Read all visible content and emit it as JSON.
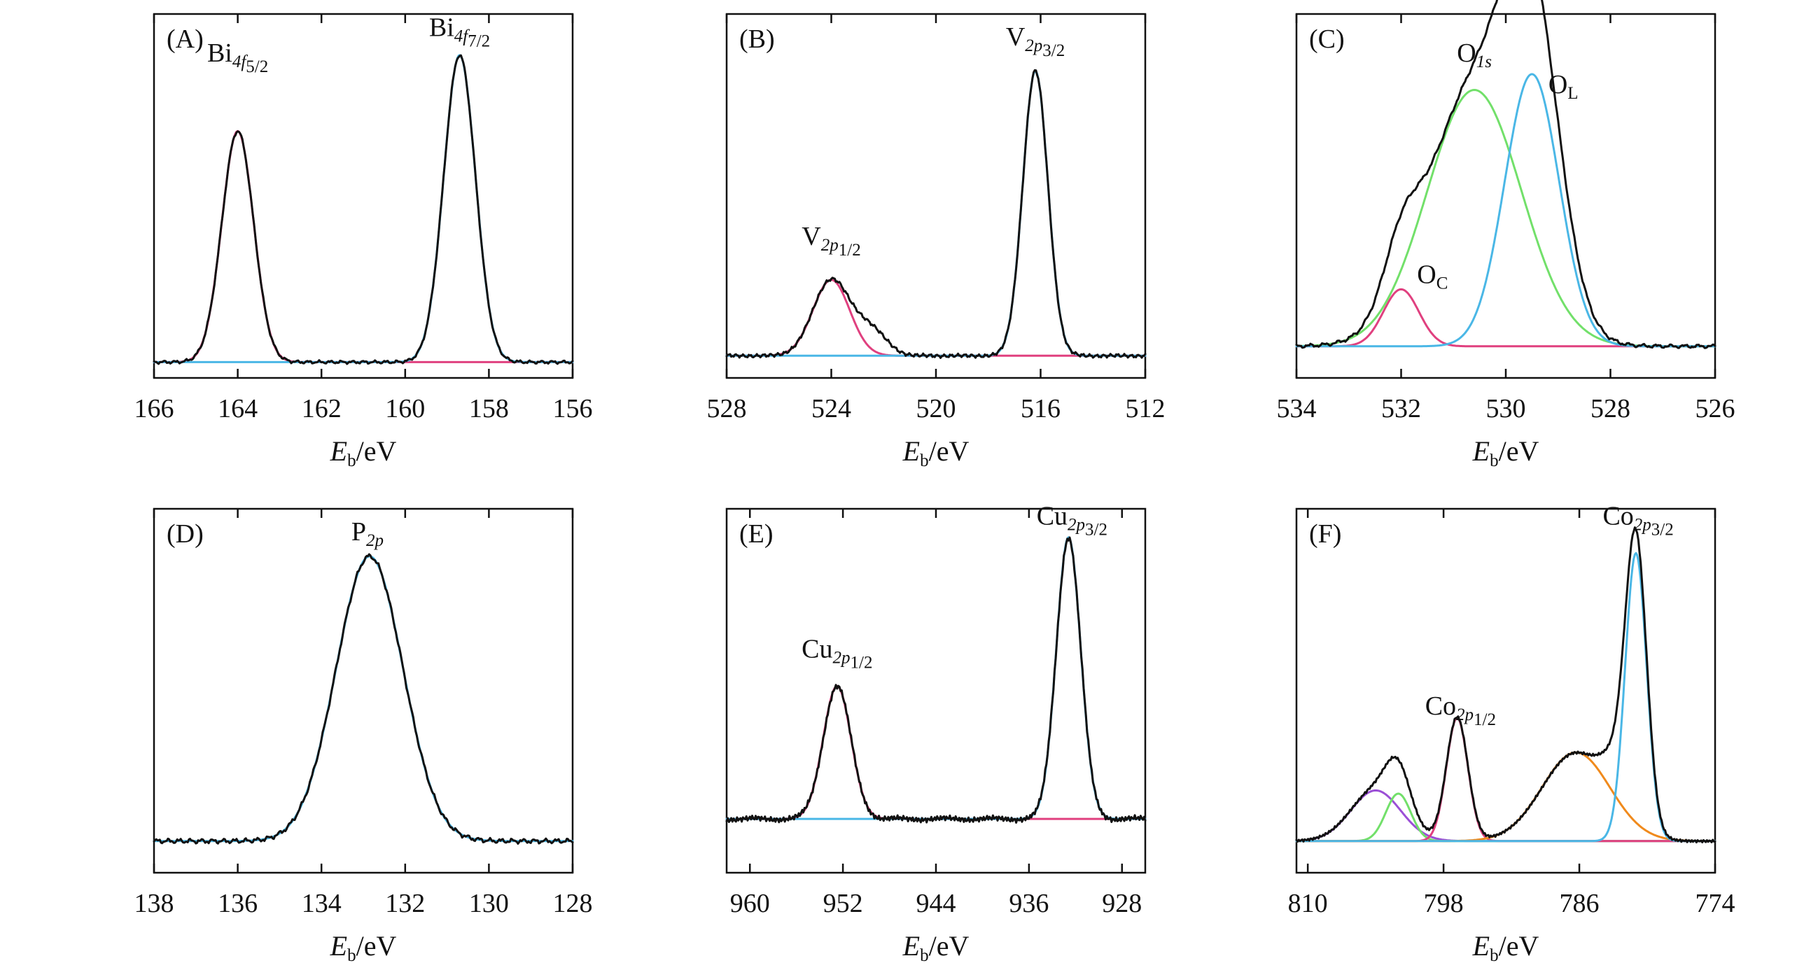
{
  "chart_data": [
    {
      "type": "line",
      "panel": "(A)",
      "xlabel": {
        "italic": "E",
        "sub": "b",
        "rest": "/eV"
      },
      "xlim": [
        166,
        156
      ],
      "xticks": [
        166,
        164,
        162,
        160,
        158,
        156
      ],
      "ylim": [
        0,
        1.15
      ],
      "colors": {
        "measured": "#111111",
        "fits": [
          "#e0407f",
          "#4ab7e6"
        ]
      },
      "baseline": 0.05,
      "components": [
        {
          "center": 164.0,
          "amp": 0.73,
          "width": 0.38
        },
        {
          "center": 158.7,
          "amp": 0.97,
          "width": 0.38
        }
      ],
      "noise": 0.006,
      "annotations": [
        {
          "main": "Bi",
          "sub": "4f",
          "subsub": "5/2",
          "x": 164.0,
          "y": 1.0
        },
        {
          "main": "Bi",
          "sub": "4f",
          "subsub": "7/2",
          "x": 158.7,
          "y": 1.08
        }
      ]
    },
    {
      "type": "line",
      "panel": "(B)",
      "xlabel": {
        "italic": "E",
        "sub": "b",
        "rest": "/eV"
      },
      "xlim": [
        528,
        512
      ],
      "xticks": [
        528,
        524,
        520,
        516,
        512
      ],
      "ylim": [
        0,
        1.15
      ],
      "colors": {
        "measured": "#111111",
        "fits": [
          "#e0407f",
          "#4ab7e6"
        ]
      },
      "baseline": 0.07,
      "components": [
        {
          "center": 524.0,
          "amp": 0.24,
          "width": 0.7
        },
        {
          "center": 516.2,
          "amp": 0.9,
          "width": 0.48
        }
      ],
      "extra": [
        {
          "center": 522.5,
          "amp": 0.08,
          "width": 0.6
        }
      ],
      "noise": 0.007,
      "annotations": [
        {
          "main": "V",
          "sub": "2p",
          "subsub": "1/2",
          "x": 524.0,
          "y": 0.42
        },
        {
          "main": "V",
          "sub": "2p",
          "subsub": "3/2",
          "x": 516.2,
          "y": 1.05
        }
      ]
    },
    {
      "type": "line",
      "panel": "(C)",
      "xlabel": {
        "italic": "E",
        "sub": "b",
        "rest": "/eV"
      },
      "xlim": [
        534,
        526
      ],
      "xticks": [
        534,
        532,
        530,
        528,
        526
      ],
      "ylim": [
        0,
        1.15
      ],
      "colors": {
        "measured": "#111111",
        "fits": [
          "#e0407f",
          "#72e06a",
          "#4ab7e6"
        ]
      },
      "baseline": 0.1,
      "components": [
        {
          "center": 532.0,
          "amp": 0.18,
          "width": 0.34
        },
        {
          "center": 530.6,
          "amp": 0.81,
          "width": 0.9
        },
        {
          "center": 529.5,
          "amp": 0.86,
          "width": 0.52
        }
      ],
      "noise": 0.007,
      "annotations": [
        {
          "main": "O",
          "sub": "C",
          "subsub": "",
          "x": 531.4,
          "y": 0.3
        },
        {
          "main": "O",
          "sub": "1s",
          "subsub": "",
          "x": 530.6,
          "y": 1.0
        },
        {
          "main": "O",
          "sub": "L",
          "subsub": "",
          "x": 528.9,
          "y": 0.9
        }
      ]
    },
    {
      "type": "line",
      "panel": "(D)",
      "xlabel": {
        "italic": "E",
        "sub": "b",
        "rest": "/eV"
      },
      "xlim": [
        138,
        128
      ],
      "xticks": [
        138,
        136,
        134,
        132,
        130,
        128
      ],
      "ylim": [
        0,
        1.15
      ],
      "colors": {
        "measured": "#111111",
        "fits": [
          "#4ab7e6"
        ]
      },
      "baseline": 0.1,
      "components": [
        {
          "center": 132.85,
          "amp": 0.9,
          "width": 0.8
        }
      ],
      "noise": 0.009,
      "annotations": [
        {
          "main": "P",
          "sub": "2p",
          "subsub": "",
          "x": 132.9,
          "y": 1.05
        }
      ]
    },
    {
      "type": "line",
      "panel": "(E)",
      "xlabel": {
        "italic": "E",
        "sub": "b",
        "rest": "/eV"
      },
      "xlim": [
        962,
        926
      ],
      "xticks": [
        960,
        952,
        944,
        936,
        928
      ],
      "ylim": [
        0,
        1.15
      ],
      "colors": {
        "measured": "#111111",
        "fits": [
          "#e0407f",
          "#4ab7e6"
        ]
      },
      "baseline": 0.17,
      "components": [
        {
          "center": 952.5,
          "amp": 0.42,
          "width": 1.2
        },
        {
          "center": 932.6,
          "amp": 0.89,
          "width": 1.05
        }
      ],
      "noise": 0.012,
      "annotations": [
        {
          "main": "Cu",
          "sub": "2p",
          "subsub": "1/2",
          "x": 952.5,
          "y": 0.68
        },
        {
          "main": "Cu",
          "sub": "2p",
          "subsub": "3/2",
          "x": 932.3,
          "y": 1.1
        }
      ]
    },
    {
      "type": "line",
      "panel": "(F)",
      "xlabel": {
        "italic": "E",
        "sub": "b",
        "rest": "/eV"
      },
      "xlim": [
        811,
        774
      ],
      "xticks": [
        810,
        798,
        786,
        774
      ],
      "ylim": [
        0,
        1.15
      ],
      "colors": {
        "measured": "#111111",
        "fits": [
          "#9b4fd6",
          "#72e06a",
          "#e0407f",
          "#f08a1c",
          "#4ab7e6"
        ]
      },
      "baseline": 0.1,
      "components": [
        {
          "center": 804.0,
          "amp": 0.16,
          "width": 2.2
        },
        {
          "center": 802.0,
          "amp": 0.15,
          "width": 1.1
        },
        {
          "center": 796.8,
          "amp": 0.39,
          "width": 0.95
        },
        {
          "center": 786.3,
          "amp": 0.28,
          "width": 3.0
        },
        {
          "center": 781.0,
          "amp": 0.91,
          "width": 0.95
        }
      ],
      "extra": [
        {
          "center": 783.0,
          "amp": 0.1,
          "width": 1.1
        }
      ],
      "noise": 0.006,
      "annotations": [
        {
          "main": "Co",
          "sub": "2p",
          "subsub": "1/2",
          "x": 796.5,
          "y": 0.5
        },
        {
          "main": "Co",
          "sub": "2p",
          "subsub": "3/2",
          "x": 780.8,
          "y": 1.1
        }
      ]
    }
  ]
}
